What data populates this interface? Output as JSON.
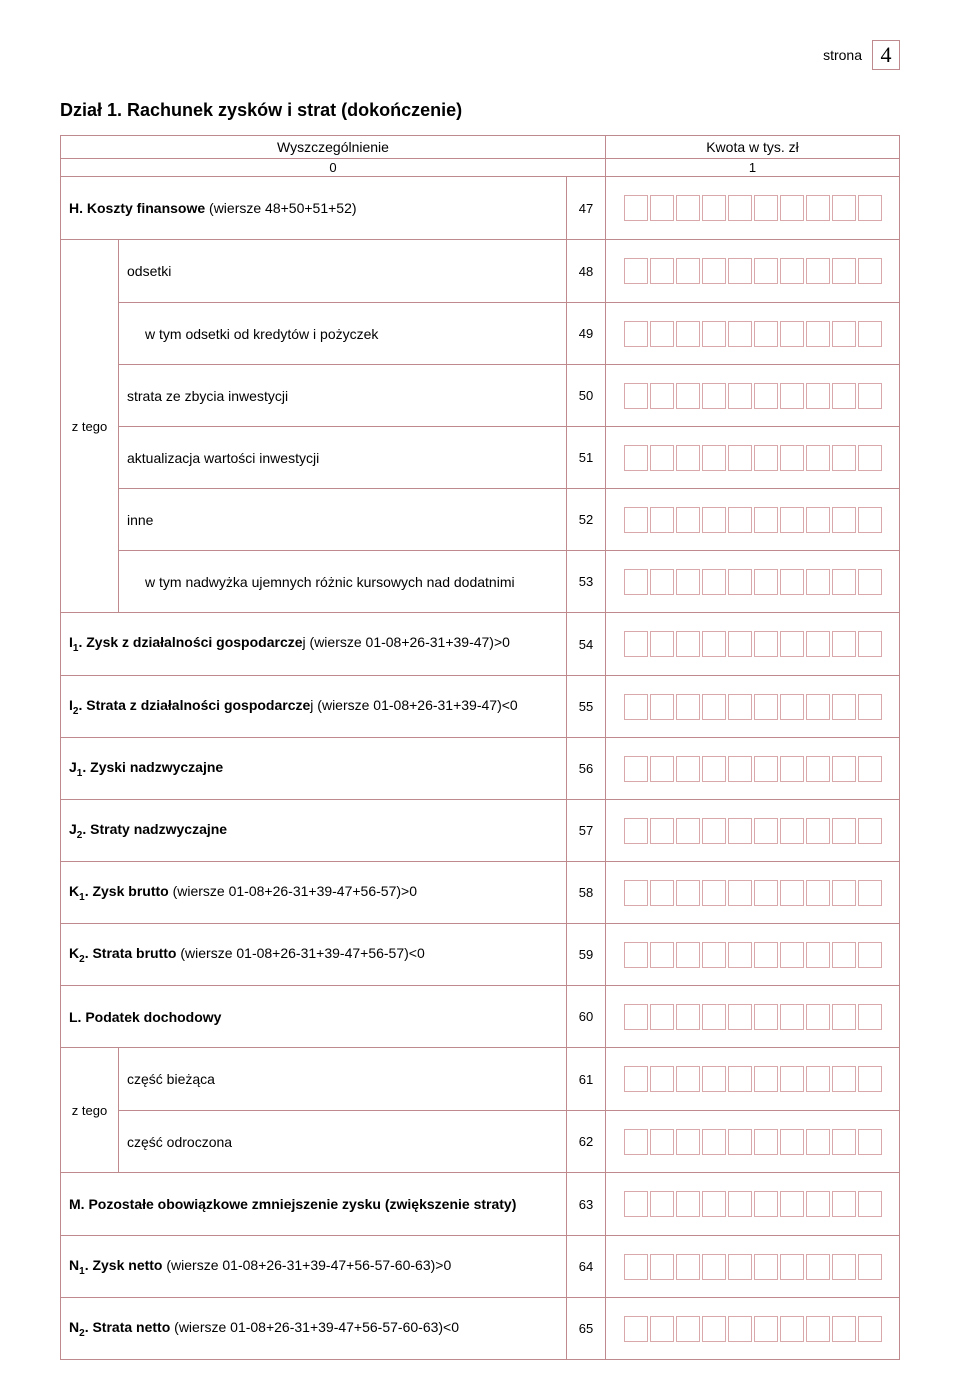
{
  "page": {
    "label": "strona",
    "number": "4"
  },
  "section_title": "Dział 1. Rachunek zysków i strat (dokończenie)",
  "header": {
    "left": "Wyszczególnienie",
    "right": "Kwota w tys. zł",
    "sub_left": "0",
    "sub_right": "1"
  },
  "row_H": {
    "prefix": "H. Koszty finansowe",
    "detail": " (wiersze 48+50+51+52)",
    "num": "47"
  },
  "ztego1_label": "z tego",
  "row_48": {
    "text": "odsetki",
    "num": "48"
  },
  "row_49": {
    "text": "w tym odsetki od kredytów i pożyczek",
    "num": "49"
  },
  "row_50": {
    "text": "strata ze zbycia inwestycji",
    "num": "50"
  },
  "row_51": {
    "text": "aktualizacja wartości inwestycji",
    "num": "51"
  },
  "row_52": {
    "text": "inne",
    "num": "52"
  },
  "row_53": {
    "text": "w tym nadwyżka ujemnych różnic kursowych nad dodatnimi",
    "num": "53"
  },
  "row_I1": {
    "prefix": "I",
    "subnum": "1",
    "bold": ". Zysk z działalności gospodarcze",
    "detail": "j (wiersze  01-08+26-31+39-47)>0",
    "num": "54"
  },
  "row_I2": {
    "prefix": "I",
    "subnum": "2",
    "bold": ". Strata z działalności gospodarcze",
    "detail": "j (wiersze 01-08+26-31+39-47)<0",
    "num": "55"
  },
  "row_J1": {
    "prefix": "J",
    "subnum": "1",
    "bold": ". Zyski nadzwyczajne",
    "num": "56"
  },
  "row_J2": {
    "prefix": "J",
    "subnum": "2",
    "bold": ". Straty nadzwyczajne",
    "num": "57"
  },
  "row_K1": {
    "prefix": "K",
    "subnum": "1",
    "bold": ". Zysk brutto",
    "detail": " (wiersze 01-08+26-31+39-47+56-57)>0",
    "num": "58"
  },
  "row_K2": {
    "prefix": "K",
    "subnum": "2",
    "bold": ". Strata brutto",
    "detail": " (wiersze 01-08+26-31+39-47+56-57)<0",
    "num": "59"
  },
  "row_L": {
    "bold": "L. Podatek dochodowy",
    "num": "60"
  },
  "ztego2_label": "z tego",
  "row_61": {
    "text": "część bieżąca",
    "num": "61"
  },
  "row_62": {
    "text": "część odroczona",
    "num": "62"
  },
  "row_M": {
    "bold": "M. Pozostałe obowiązkowe zmniejszenie zysku (zwiększenie straty)",
    "num": "63"
  },
  "row_N1": {
    "prefix": "N",
    "subnum": "1",
    "bold": ". Zysk netto",
    "detail": " (wiersze 01-08+26-31+39-47+56-57-60-63)>0",
    "num": "64"
  },
  "row_N2": {
    "prefix": "N",
    "subnum": "2",
    "bold": ". Strata netto",
    "detail": " (wiersze 01-08+26-31+39-47+56-57-60-63)<0",
    "num": "65"
  },
  "box_count": 10
}
